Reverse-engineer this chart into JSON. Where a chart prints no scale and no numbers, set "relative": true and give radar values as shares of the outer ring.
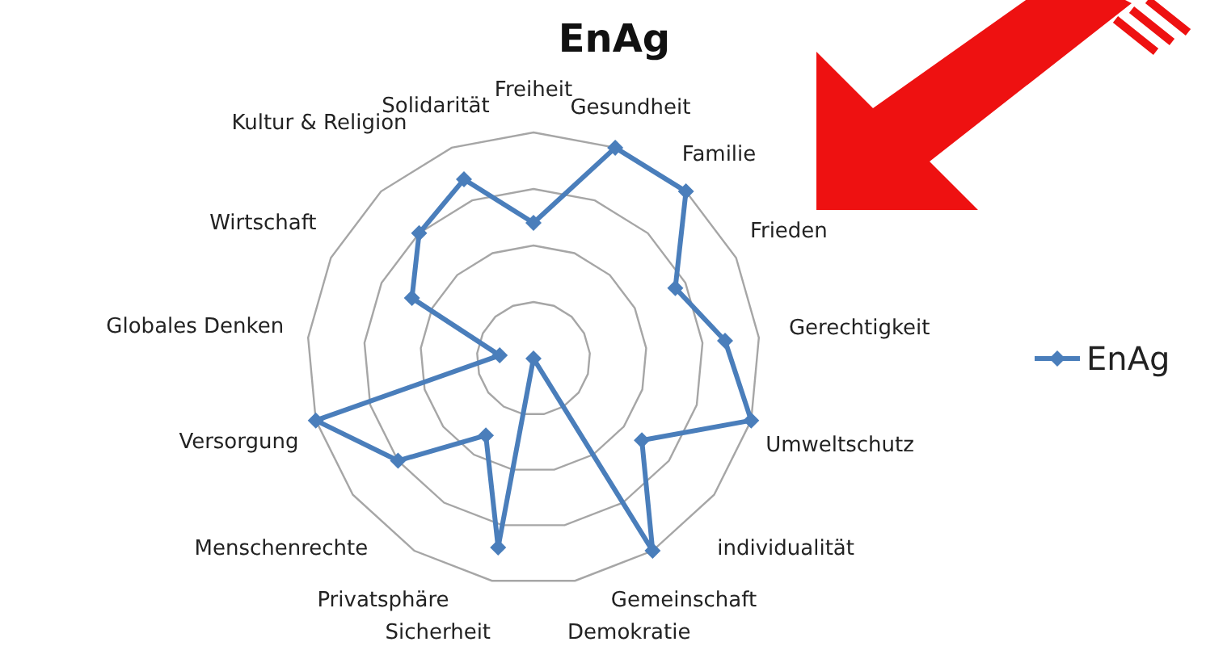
{
  "chart_data": {
    "type": "radar",
    "title": "EnAg",
    "relative": true,
    "grid": true,
    "legend": "right",
    "marker": "diamond",
    "line_style": "solid",
    "categories": [
      "Freiheit",
      "Gesundheit",
      "Familie",
      "Frieden",
      "Gerechtigkeit",
      "Umweltschutz",
      "individualität",
      "Gemeinschaft",
      "Demokratie",
      "Sicherheit",
      "Privatsphäre",
      "Menschenrechte",
      "Versorgung",
      "Globales Denken",
      "Wirtschaft",
      "Kultur & Religion",
      "Solidarität"
    ],
    "series": [
      {
        "name": "EnAg",
        "color": "#4a7ebb",
        "values": [
          0.6,
          1,
          1,
          0.7,
          0.85,
          1,
          0.6,
          1,
          0,
          0.85,
          0.4,
          0.75,
          1,
          0.15,
          0.6,
          0.75,
          0.85
        ]
      }
    ]
  }
}
